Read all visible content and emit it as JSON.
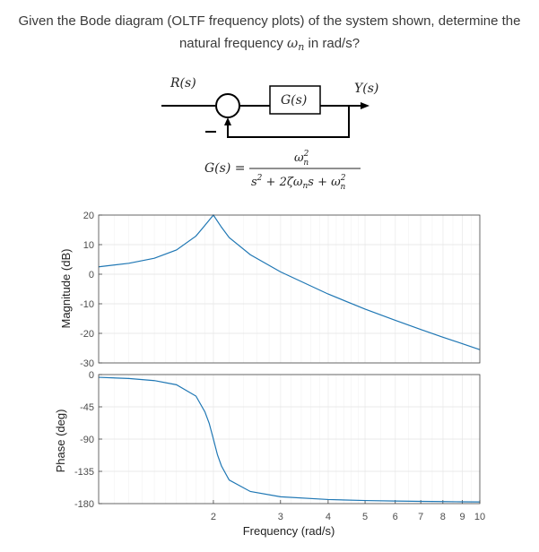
{
  "question": {
    "line1": "Given the Bode diagram (OLTF frequency plots) of the system shown, determine the",
    "line2_pre": "natural frequency ",
    "omega": "ω",
    "sub_n": "n",
    "line2_post": " in rad/s?"
  },
  "block_diagram": {
    "input_label": "R(s)",
    "output_label": "Y(s)",
    "block_label": "G(s)",
    "feedback_sign": "−",
    "tf_lhs": "G(s) =",
    "tf_num": "ω",
    "tf_num_sub": "n",
    "tf_num_sup": "2",
    "tf_den_1": "s",
    "tf_den_1_sup": "2",
    "tf_den_2": " + 2ζω",
    "tf_den_2_sub": "n",
    "tf_den_3": "s + ω",
    "tf_den_3_sub": "n",
    "tf_den_3_sup": "2"
  },
  "chart_data": [
    {
      "type": "line",
      "title": "",
      "ylabel": "Magnitude (dB)",
      "xscale": "log",
      "xlim": [
        1,
        10
      ],
      "ylim": [
        -30,
        20
      ],
      "yticks": [
        20,
        10,
        0,
        -10,
        -20,
        -30
      ],
      "grid": true,
      "series": [
        {
          "x": [
            1,
            1.2,
            1.4,
            1.6,
            1.8,
            1.9,
            2.0,
            2.1,
            2.2,
            2.5,
            3,
            4,
            5,
            6,
            7,
            8,
            9,
            10
          ],
          "y": [
            2.5,
            3.7,
            5.4,
            8.2,
            12.9,
            16.5,
            20.0,
            15.9,
            12.4,
            6.6,
            0.8,
            -6.7,
            -11.8,
            -15.6,
            -18.7,
            -21.3,
            -23.5,
            -25.5
          ]
        }
      ]
    },
    {
      "type": "line",
      "title": "",
      "xlabel": "Frequency  (rad/s)",
      "ylabel": "Phase (deg)",
      "xscale": "log",
      "xlim": [
        1,
        10
      ],
      "ylim": [
        -180,
        0
      ],
      "xticks": [
        2,
        3,
        4,
        5,
        6,
        7,
        8,
        9,
        10
      ],
      "yticks": [
        0,
        -45,
        -90,
        -135,
        -180
      ],
      "grid": true,
      "series": [
        {
          "x": [
            1,
            1.2,
            1.4,
            1.6,
            1.8,
            1.9,
            1.95,
            2.0,
            2.05,
            2.1,
            2.2,
            2.5,
            3,
            4,
            5,
            6,
            7,
            8,
            9,
            10
          ],
          "y": [
            -3.8,
            -5.5,
            -8.4,
            -14.2,
            -30.0,
            -52.0,
            -68.0,
            -90.0,
            -112.0,
            -127.5,
            -147.1,
            -163.1,
            -170.5,
            -174.3,
            -175.7,
            -176.4,
            -176.9,
            -177.2,
            -177.5,
            -177.7
          ]
        }
      ]
    }
  ]
}
